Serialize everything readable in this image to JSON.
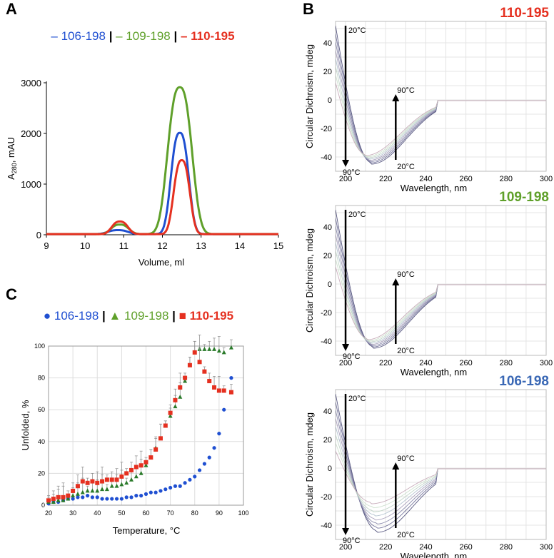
{
  "panels": {
    "A": "A",
    "B": "B",
    "C": "C"
  },
  "chart_data": [
    {
      "id": "A",
      "type": "line",
      "xlabel": "Volume, ml",
      "ylabel_main": "A",
      "ylabel_sub": "280",
      "ylabel_tail": ", mAU",
      "xlim": [
        9,
        15
      ],
      "ylim": [
        0,
        3000
      ],
      "xticks": [
        9,
        10,
        11,
        12,
        13,
        14,
        15
      ],
      "yticks": [
        0,
        1000,
        2000,
        3000
      ],
      "legend": {
        "items": [
          {
            "text": "– 106-198",
            "color": "#1f4fd1",
            "bold": false
          },
          {
            "text": "|",
            "color": "#000000",
            "bold": true
          },
          {
            "text": "– 109-198",
            "color": "#5fa02a",
            "bold": false
          },
          {
            "text": "|",
            "color": "#000000",
            "bold": true
          },
          {
            "text": "– 110-195",
            "color": "#e53020",
            "bold": true
          }
        ]
      },
      "series": [
        {
          "name": "106-198",
          "color": "#1f4fd1",
          "peaks": [
            {
              "center": 10.85,
              "height": 80,
              "width": 0.25
            },
            {
              "center": 12.45,
              "height": 2000,
              "width": 0.22
            }
          ]
        },
        {
          "name": "109-198",
          "color": "#5fa02a",
          "peaks": [
            {
              "center": 10.9,
              "height": 190,
              "width": 0.22
            },
            {
              "center": 12.45,
              "height": 2900,
              "width": 0.3
            }
          ]
        },
        {
          "name": "110-195",
          "color": "#e53020",
          "peaks": [
            {
              "center": 10.9,
              "height": 250,
              "width": 0.2
            },
            {
              "center": 12.5,
              "height": 1460,
              "width": 0.2
            }
          ]
        }
      ]
    },
    {
      "id": "B",
      "type": "line",
      "xlabel": "Wavelength, nm",
      "ylabel": "Circular Dichroism, mdeg",
      "xlim": [
        195,
        300
      ],
      "ylim": [
        -50,
        55
      ],
      "xticks": [
        200,
        220,
        240,
        260,
        280,
        300
      ],
      "yticks": [
        40,
        20,
        0,
        -20,
        -40
      ],
      "annotations": {
        "top_left": "20°C",
        "bottom_left": "90°C",
        "up_top": "90°C",
        "up_bottom": "20°C"
      },
      "panels": [
        {
          "title": "110-195",
          "title_color": "#e53020",
          "min_center": 213,
          "curves": 8
        },
        {
          "title": "109-198",
          "title_color": "#5fa02a",
          "min_center": 214,
          "curves": 8
        },
        {
          "title": "106-198",
          "title_color": "#3a68b5",
          "min_center": 216,
          "curves": 8
        }
      ]
    },
    {
      "id": "C",
      "type": "scatter",
      "xlabel": "Temperature, °C",
      "ylabel": "Unfolded, %",
      "xlim": [
        20,
        100
      ],
      "ylim": [
        0,
        100
      ],
      "xticks": [
        20,
        30,
        40,
        50,
        60,
        70,
        80,
        90,
        100
      ],
      "yticks": [
        0,
        20,
        40,
        60,
        80,
        100
      ],
      "legend": {
        "items": [
          {
            "text": "● 106-198",
            "color": "#1f4fd1",
            "bold": false
          },
          {
            "text": "|",
            "color": "#000000",
            "bold": true
          },
          {
            "text": "▲ 109-198",
            "color": "#5fa02a",
            "bold": false
          },
          {
            "text": "|",
            "color": "#000000",
            "bold": true
          },
          {
            "text": "■ 110-195",
            "color": "#e53020",
            "bold": true
          }
        ]
      },
      "series": [
        {
          "name": "106-198",
          "marker": "circle",
          "color": "#1f4fd1",
          "x": [
            20,
            22,
            24,
            26,
            28,
            30,
            32,
            34,
            36,
            38,
            40,
            42,
            44,
            46,
            48,
            50,
            52,
            54,
            56,
            58,
            60,
            62,
            64,
            66,
            68,
            70,
            72,
            74,
            76,
            78,
            80,
            82,
            84,
            86,
            88,
            90,
            92,
            95
          ],
          "y": [
            1,
            2,
            2,
            3,
            4,
            4,
            5,
            5,
            6,
            5,
            5,
            4,
            4,
            4,
            4,
            4,
            5,
            5,
            6,
            6,
            7,
            8,
            8,
            9,
            10,
            11,
            12,
            12,
            14,
            16,
            18,
            22,
            26,
            30,
            36,
            45,
            60,
            80
          ]
        },
        {
          "name": "109-198",
          "marker": "triangle",
          "color": "#2a7a2a",
          "x": [
            20,
            22,
            24,
            26,
            28,
            30,
            32,
            34,
            36,
            38,
            40,
            42,
            44,
            46,
            48,
            50,
            52,
            54,
            56,
            58,
            60,
            62,
            64,
            66,
            68,
            70,
            72,
            74,
            76,
            78,
            80,
            82,
            84,
            86,
            88,
            90,
            92,
            95
          ],
          "y": [
            2,
            2,
            3,
            3,
            4,
            6,
            7,
            8,
            9,
            9,
            9,
            10,
            10,
            12,
            12,
            13,
            14,
            16,
            18,
            20,
            25,
            30,
            36,
            42,
            50,
            56,
            62,
            68,
            78,
            88,
            96,
            98,
            98,
            98,
            98,
            97,
            96,
            99
          ]
        },
        {
          "name": "110-195",
          "marker": "square",
          "color": "#e53020",
          "x": [
            20,
            22,
            24,
            26,
            28,
            30,
            32,
            34,
            36,
            38,
            40,
            42,
            44,
            46,
            48,
            50,
            52,
            54,
            56,
            58,
            60,
            62,
            64,
            66,
            68,
            70,
            72,
            74,
            76,
            78,
            80,
            82,
            84,
            86,
            88,
            90,
            92,
            95
          ],
          "y": [
            3,
            4,
            5,
            5,
            6,
            9,
            12,
            15,
            14,
            15,
            14,
            15,
            16,
            16,
            16,
            18,
            20,
            22,
            24,
            25,
            27,
            30,
            35,
            42,
            50,
            58,
            66,
            74,
            80,
            88,
            96,
            90,
            84,
            78,
            74,
            72,
            72,
            71
          ]
        }
      ]
    }
  ]
}
